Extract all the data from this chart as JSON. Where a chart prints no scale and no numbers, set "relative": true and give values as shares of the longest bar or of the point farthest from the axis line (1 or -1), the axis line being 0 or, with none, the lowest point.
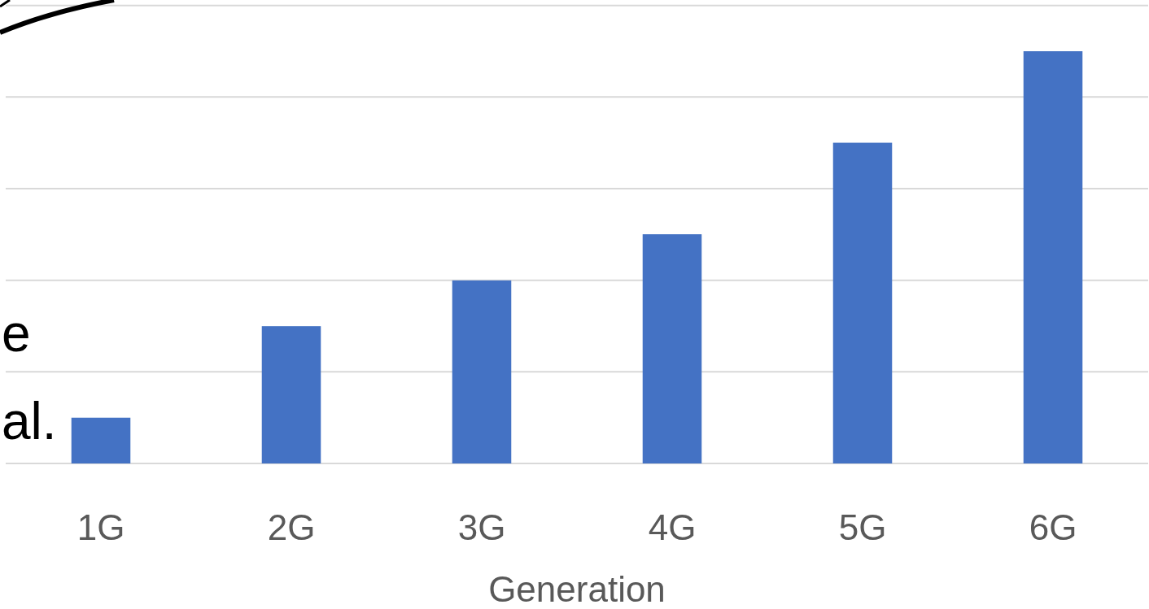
{
  "chart_data": {
    "type": "bar",
    "relative": true,
    "xlabel": "Generation",
    "categories": [
      "1G",
      "2G",
      "3G",
      "4G",
      "5G",
      "6G"
    ],
    "values": [
      0.111,
      0.333,
      0.444,
      0.556,
      0.778,
      1
    ],
    "color": "#4472c4",
    "grid": "y",
    "annotations": [
      "e",
      "al."
    ]
  }
}
